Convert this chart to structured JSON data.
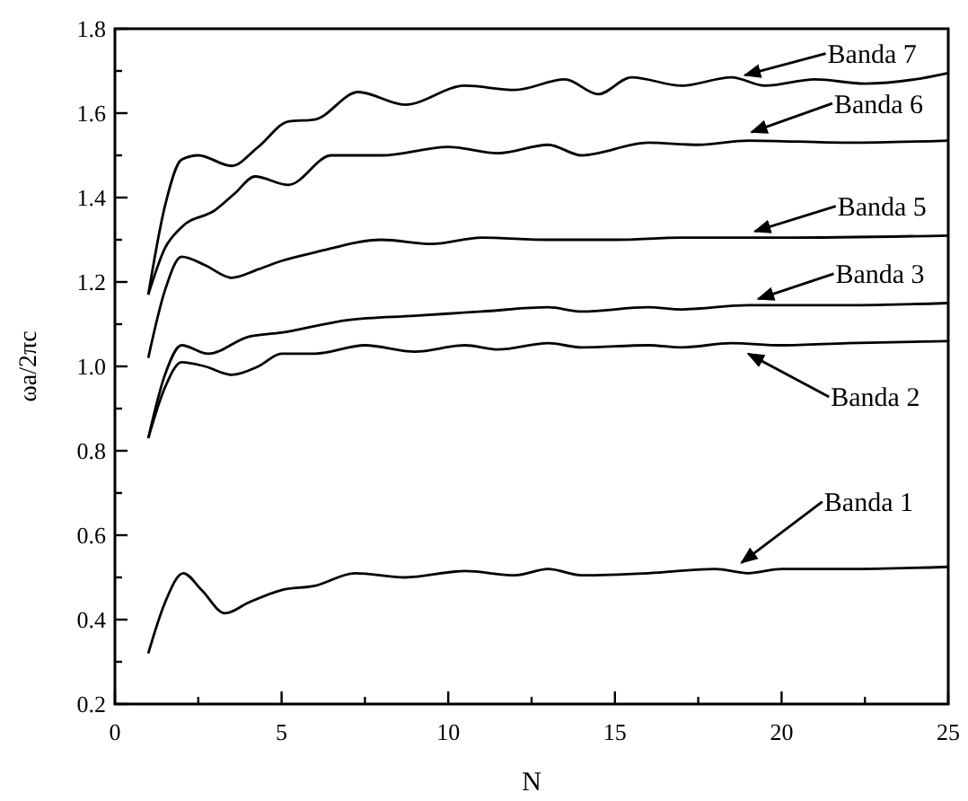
{
  "chart_data": {
    "type": "line",
    "xlabel": "N",
    "ylabel": "ωa/2πc",
    "xlim": [
      0,
      25
    ],
    "ylim": [
      0.2,
      1.8
    ],
    "xticks": [
      0,
      {
        "value": 2.5,
        "label": null
      },
      5,
      {
        "value": 7.5,
        "label": null
      },
      10,
      {
        "value": 12.5,
        "label": null
      },
      15,
      {
        "value": 17.5,
        "label": null
      },
      20,
      {
        "value": 22.5,
        "label": null
      },
      25
    ],
    "yticks": [
      0.2,
      {
        "value": 0.3,
        "label": null
      },
      0.4,
      {
        "value": 0.5,
        "label": null
      },
      0.6,
      {
        "value": 0.7,
        "label": null
      },
      0.8,
      {
        "value": 0.9,
        "label": null
      },
      {
        "value": 1.0,
        "label": "1.0"
      },
      {
        "value": 1.1,
        "label": null
      },
      1.2,
      {
        "value": 1.3,
        "label": null
      },
      1.4,
      {
        "value": 1.5,
        "label": null
      },
      1.6,
      {
        "value": 1.7,
        "label": null
      },
      1.8
    ],
    "grid": false,
    "marker": "none",
    "line_style": "solid",
    "series": [
      {
        "color": "#000000",
        "x": [
          1,
          1.5,
          2.05,
          2.6,
          3.3,
          4,
          5,
          6,
          7.2,
          8.7,
          10.5,
          12,
          13,
          14,
          16,
          18,
          19,
          20,
          22,
          25
        ],
        "values": [
          0.32,
          0.44,
          0.51,
          0.47,
          0.415,
          0.44,
          0.47,
          0.48,
          0.51,
          0.5,
          0.515,
          0.505,
          0.52,
          0.505,
          0.51,
          0.52,
          0.51,
          0.52,
          0.52,
          0.525
        ]
      },
      {
        "color": "#000000",
        "x": [
          1,
          1.5,
          2,
          2.7,
          3.5,
          4.3,
          5,
          6,
          7.5,
          9,
          10.5,
          11.5,
          13,
          14,
          16,
          17,
          18.5,
          20,
          22,
          25
        ],
        "values": [
          0.83,
          0.95,
          1.01,
          1.0,
          0.98,
          1.0,
          1.03,
          1.03,
          1.05,
          1.035,
          1.05,
          1.04,
          1.055,
          1.045,
          1.05,
          1.045,
          1.055,
          1.05,
          1.055,
          1.06
        ]
      },
      {
        "color": "#000000",
        "x": [
          1,
          1.5,
          2,
          2.8,
          4,
          5,
          7,
          9,
          11,
          13,
          14,
          16,
          17,
          19,
          22,
          25
        ],
        "values": [
          0.83,
          0.98,
          1.05,
          1.03,
          1.07,
          1.08,
          1.11,
          1.12,
          1.13,
          1.14,
          1.13,
          1.14,
          1.135,
          1.145,
          1.145,
          1.15
        ]
      },
      {
        "color": "#000000",
        "x": [
          1,
          1.5,
          2,
          2.7,
          3.5,
          4.3,
          5,
          6,
          8,
          9.5,
          11,
          13,
          15,
          17,
          20,
          25
        ],
        "values": [
          1.02,
          1.18,
          1.26,
          1.24,
          1.21,
          1.23,
          1.25,
          1.27,
          1.3,
          1.29,
          1.305,
          1.3,
          1.3,
          1.305,
          1.305,
          1.31
        ]
      },
      {
        "color": "#000000",
        "x": [
          1,
          1.5,
          2,
          3,
          3.6,
          4.2,
          5.2,
          6.5,
          8,
          10,
          11.5,
          13,
          14,
          16,
          17.5,
          19,
          22,
          25
        ],
        "values": [
          1.17,
          1.28,
          1.33,
          1.37,
          1.41,
          1.45,
          1.43,
          1.5,
          1.5,
          1.52,
          1.505,
          1.525,
          1.5,
          1.53,
          1.525,
          1.535,
          1.53,
          1.535
        ]
      },
      {
        "color": "#000000",
        "x": [
          1,
          1.5,
          2,
          2.5,
          3.5,
          4.3,
          5.2,
          6,
          7.3,
          8.7,
          10.5,
          12,
          13.5,
          14.5,
          15.5,
          17,
          18.5,
          19.5,
          21,
          22.5,
          24,
          25
        ],
        "values": [
          1.17,
          1.38,
          1.49,
          1.5,
          1.475,
          1.52,
          1.58,
          1.585,
          1.65,
          1.62,
          1.665,
          1.655,
          1.68,
          1.645,
          1.685,
          1.665,
          1.685,
          1.665,
          1.68,
          1.67,
          1.68,
          1.695
        ]
      }
    ],
    "annotations": [
      {
        "text": "Banda 7",
        "x": 18.9,
        "y": 1.69
      },
      {
        "text": "Banda 6",
        "x": 19.1,
        "y": 1.555
      },
      {
        "text": "Banda 5",
        "x": 19.2,
        "y": 1.32
      },
      {
        "text": "Banda 3",
        "x": 19.3,
        "y": 1.16
      },
      {
        "text": "Banda 2",
        "x": 19.0,
        "y": 1.03
      },
      {
        "text": "Banda 1",
        "x": 18.8,
        "y": 0.535
      }
    ]
  }
}
